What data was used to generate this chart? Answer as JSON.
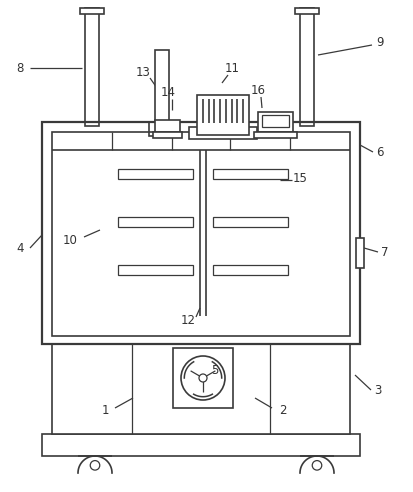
{
  "bg_color": "#ffffff",
  "line_color": "#3a3a3a",
  "label_color": "#333333",
  "fig_width": 4.14,
  "fig_height": 4.92,
  "dpi": 100
}
